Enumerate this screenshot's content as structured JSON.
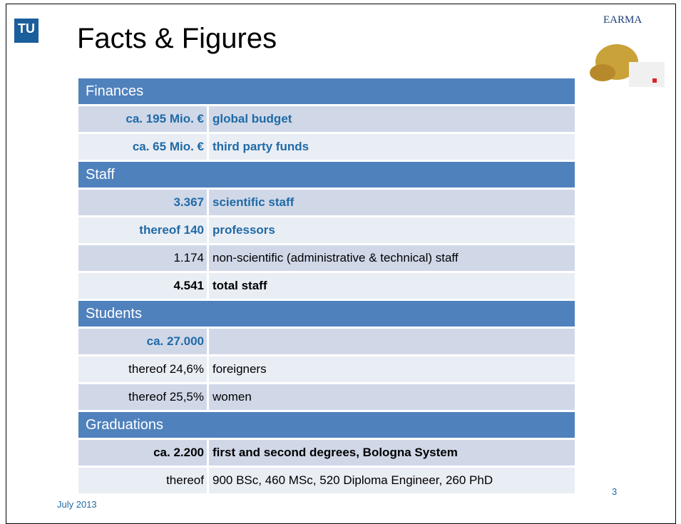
{
  "header": {
    "title": "Facts & Figures",
    "logo": "TU"
  },
  "sponsor": {
    "name": "EARMA"
  },
  "table": {
    "sections": [
      {
        "title": "Finances",
        "rows": [
          {
            "figure": "ca. 195 Mio. €",
            "label": "global budget"
          },
          {
            "figure": "ca. 65 Mio. €",
            "label": "third party funds"
          }
        ]
      },
      {
        "title": "Staff",
        "rows": [
          {
            "figure": "3.367",
            "label": "scientific staff"
          },
          {
            "figure": "thereof 140",
            "label": "professors"
          },
          {
            "figure": "1.174",
            "label": "non-scientific (administrative & technical) staff"
          },
          {
            "figure": "4.541",
            "label": "total staff"
          }
        ]
      },
      {
        "title": "Students",
        "rows": [
          {
            "figure": "ca. 27.000"
          },
          {
            "figure": "thereof 24,6%",
            "label": "foreigners"
          },
          {
            "figure": "thereof 25,5%",
            "label": "women"
          }
        ]
      },
      {
        "title": "Graduations",
        "rows": [
          {
            "figure": "ca. 2.200",
            "label": "first and second degrees, Bologna System"
          },
          {
            "figure": "thereof",
            "label": "900 BSc, 460 MSc, 520 Diploma Engineer, 260 PhD"
          }
        ]
      }
    ]
  },
  "footer": {
    "date": "July 2013",
    "page": "3"
  }
}
